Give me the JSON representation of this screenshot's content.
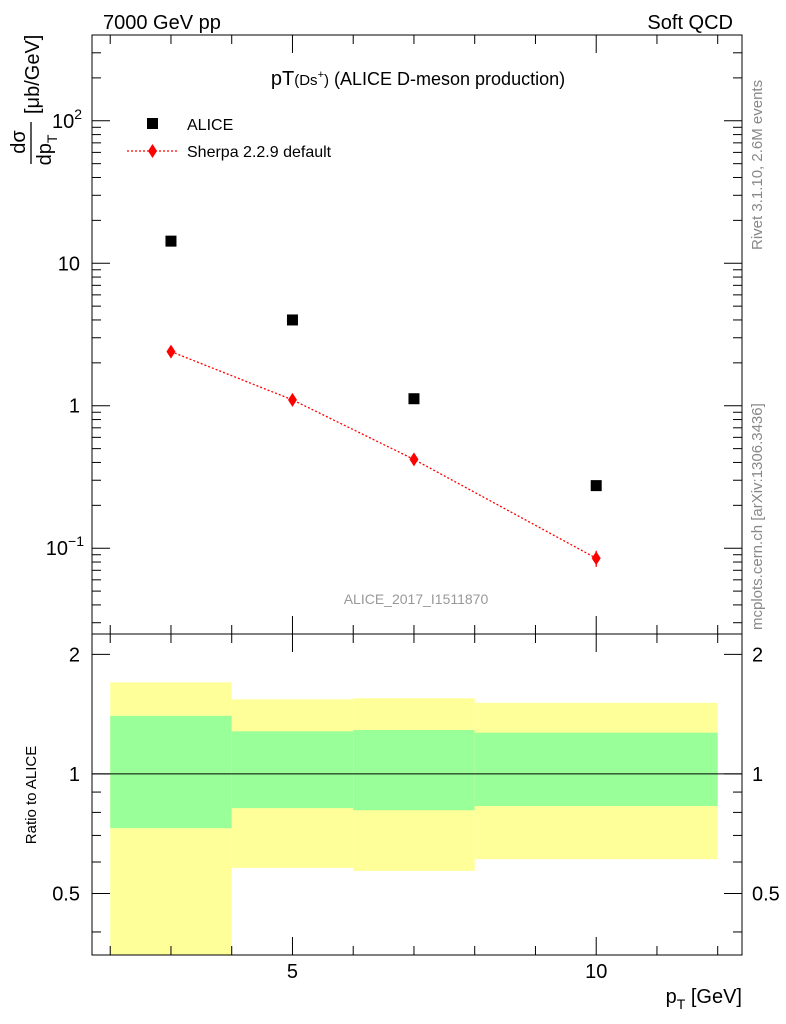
{
  "header": {
    "left": "7000 GeV pp",
    "right": "Soft QCD"
  },
  "side_labels": {
    "rivet": "Rivet 3.1.10,  2.6M events",
    "mcplots": "mcplots.cern.ch [arXiv:1306.3436]"
  },
  "chart_data": {
    "type": "scatter",
    "title": "pT(Ds+) (ALICE D-meson production)",
    "title_main": "pT",
    "title_sub": "(Ds",
    "title_sup": "+",
    "title_close": ")",
    "title_rest": " (ALICE D-meson production)",
    "watermark": "ALICE_2017_I1511870",
    "xlabel": "p_T [GeV]",
    "xlabel_p": "p",
    "xlabel_sub": "T",
    "xlabel_unit": " [GeV]",
    "ylabel": "dσ/dp_T [μb/GeV]",
    "ylabel_num": "dσ",
    "ylabel_den": "dp",
    "ylabel_den_sub": "T",
    "ylabel_unit": "[μb/GeV]",
    "xlim": [
      1.7,
      12.4
    ],
    "ylim": [
      0.025,
      400
    ],
    "y_scale": "log",
    "x_tick_labels": [
      "5",
      "10"
    ],
    "x_tick_values": [
      5,
      10
    ],
    "y_tick_labels": [
      {
        "value": 0.1,
        "base": "10",
        "exp": "−1"
      },
      {
        "value": 1,
        "base": "1",
        "exp": ""
      },
      {
        "value": 10,
        "base": "10",
        "exp": ""
      },
      {
        "value": 100,
        "base": "10",
        "exp": "2"
      }
    ],
    "legend": {
      "position": "top-left"
    },
    "series": [
      {
        "name": "ALICE",
        "marker": "square",
        "color": "#000000",
        "x": [
          3,
          5,
          7,
          10
        ],
        "y": [
          14.3,
          4.0,
          1.12,
          0.275
        ]
      },
      {
        "name": "Sherpa 2.2.9 default",
        "marker": "diamond",
        "line": "dotted",
        "color": "#ff0000",
        "x": [
          3,
          5,
          7,
          10
        ],
        "y": [
          2.4,
          1.1,
          0.42,
          0.085
        ],
        "yerr": [
          0.08,
          0.05,
          0.035,
          0.011
        ]
      }
    ],
    "ratio": {
      "ylabel": "Ratio to ALICE",
      "ylim": [
        0.35,
        2.25
      ],
      "y_tick_labels": [
        "0.5",
        "1",
        "2"
      ],
      "y_tick_values": [
        0.5,
        1,
        2
      ],
      "reference": 1,
      "bands": [
        {
          "xlo": 2,
          "xhi": 4,
          "inner": [
            0.73,
            1.4
          ],
          "outer": [
            0.3,
            1.7
          ]
        },
        {
          "xlo": 4,
          "xhi": 6,
          "inner": [
            0.82,
            1.28
          ],
          "outer": [
            0.58,
            1.54
          ]
        },
        {
          "xlo": 6,
          "xhi": 8,
          "inner": [
            0.81,
            1.29
          ],
          "outer": [
            0.57,
            1.55
          ]
        },
        {
          "xlo": 8,
          "xhi": 12,
          "inner": [
            0.83,
            1.27
          ],
          "outer": [
            0.61,
            1.51
          ]
        }
      ],
      "band_colors": {
        "inner": "#99ff99",
        "outer": "#ffff99"
      }
    }
  }
}
